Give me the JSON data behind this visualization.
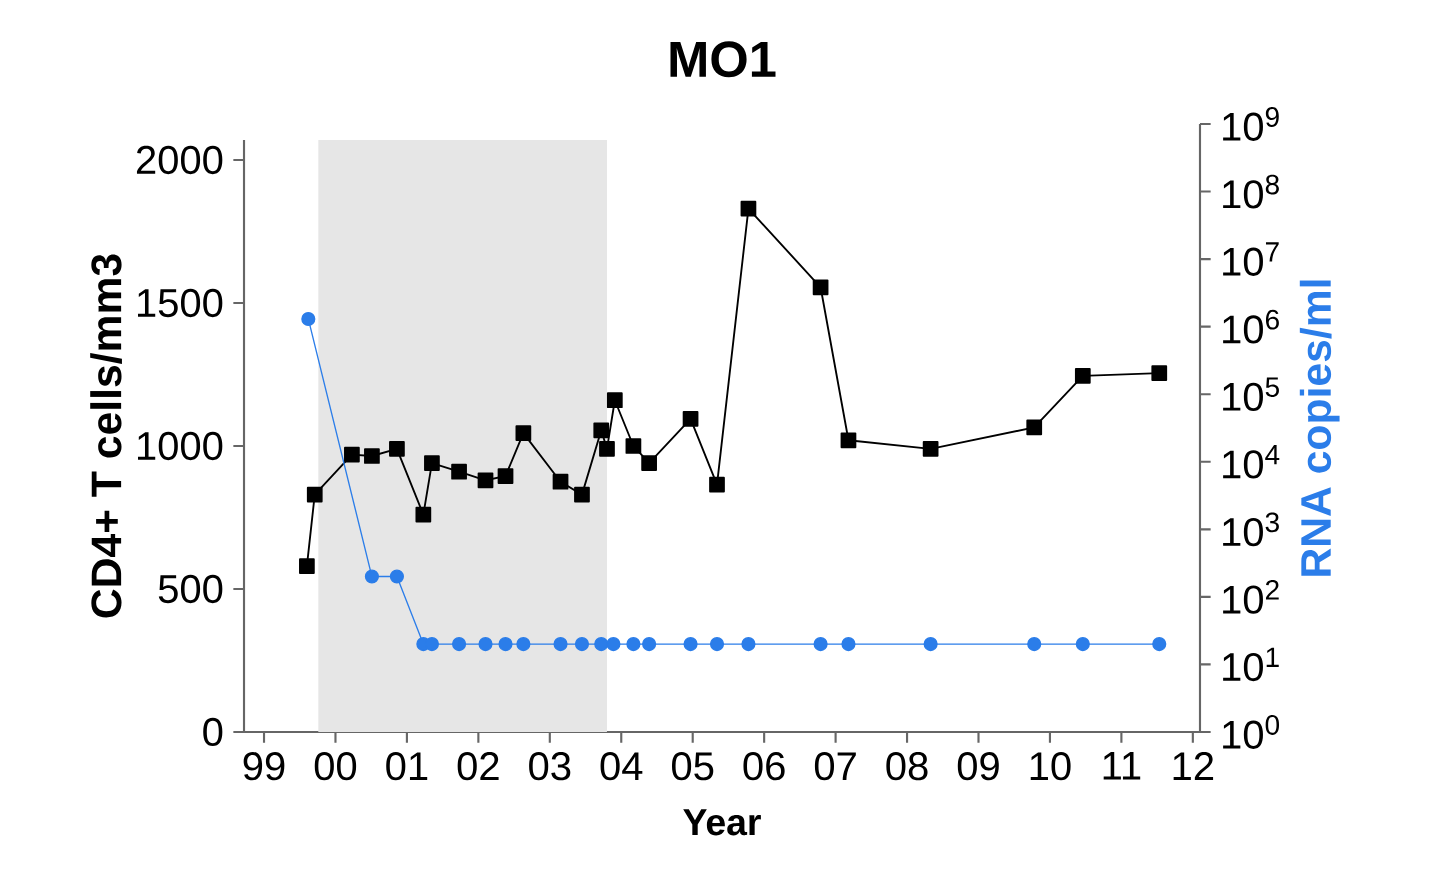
{
  "chart_data": {
    "type": "line",
    "title": "MO1",
    "xlabel": "Year",
    "ylabel": "CD4+ T cells/mm3",
    "y2label": "RNA copies/ml",
    "xlim": [
      1998.72,
      2012.1
    ],
    "xticks": [
      {
        "value": 1999,
        "label": "99"
      },
      {
        "value": 2000,
        "label": "00"
      },
      {
        "value": 2001,
        "label": "01"
      },
      {
        "value": 2002,
        "label": "02"
      },
      {
        "value": 2003,
        "label": "03"
      },
      {
        "value": 2004,
        "label": "04"
      },
      {
        "value": 2005,
        "label": "05"
      },
      {
        "value": 2006,
        "label": "06"
      },
      {
        "value": 2007,
        "label": "07"
      },
      {
        "value": 2008,
        "label": "08"
      },
      {
        "value": 2009,
        "label": "09"
      },
      {
        "value": 2010,
        "label": "10"
      },
      {
        "value": 2011,
        "label": "11"
      },
      {
        "value": 2012,
        "label": "12"
      }
    ],
    "ylim": [
      0,
      2070
    ],
    "yticks": [
      0,
      500,
      1000,
      1500,
      2000
    ],
    "y2lim": [
      1,
      1000000000
    ],
    "y2ticks": [
      {
        "value": 1,
        "label": "10$^{0}$"
      },
      {
        "value": 10,
        "label": "10$^{1}$"
      },
      {
        "value": 100,
        "label": "10$^{2}$"
      },
      {
        "value": 1000,
        "label": "10$^{3}$"
      },
      {
        "value": 10000,
        "label": "10$^{4}$"
      },
      {
        "value": 100000,
        "label": "10$^{5}$"
      },
      {
        "value": 1000000,
        "label": "10$^{6}$"
      },
      {
        "value": 10000000,
        "label": "10$^{7}$"
      },
      {
        "value": 100000000,
        "label": "10$^{8}$"
      },
      {
        "value": 1000000000,
        "label": "10$^{9}$"
      }
    ],
    "log": "y2",
    "grid": false,
    "line_style": "solid",
    "bands": [
      {
        "axis": "x",
        "from": 1999.76,
        "to": 2003.8,
        "color": "#e6e6e6"
      }
    ],
    "series": [
      {
        "color": "#000000",
        "marker": "square",
        "x": [
          1999.6,
          1999.71,
          2000.23,
          2000.51,
          2000.86,
          2001.23,
          2001.35,
          2001.73,
          2002.1,
          2002.38,
          2002.63,
          2003.15,
          2003.45,
          2003.72,
          2003.8,
          2003.91,
          2004.17,
          2004.39,
          2004.97,
          2005.34,
          2005.78,
          2006.79,
          2007.18,
          2008.33,
          2009.78,
          2010.46,
          2011.53
        ],
        "values": [
          580,
          830,
          970,
          965,
          990,
          760,
          940,
          910,
          880,
          895,
          1045,
          875,
          830,
          1055,
          990,
          1160,
          1000,
          940,
          1095,
          865,
          1830,
          1555,
          1020,
          990,
          1065,
          1245,
          1255
        ]
      },
      {
        "color": "#2b7de9",
        "marker": "circle",
        "axis": "y2",
        "x": [
          1999.62,
          2000.51,
          2000.86,
          2001.23,
          2001.35,
          2001.73,
          2002.1,
          2002.38,
          2002.63,
          2003.15,
          2003.45,
          2003.72,
          2003.89,
          2004.17,
          2004.39,
          2004.97,
          2005.34,
          2005.78,
          2006.79,
          2007.18,
          2008.33,
          2009.78,
          2010.46,
          2011.53
        ],
        "values": [
          1300000,
          200,
          200,
          20,
          20,
          20,
          20,
          20,
          20,
          20,
          20,
          20,
          20,
          20,
          20,
          20,
          20,
          20,
          20,
          20,
          20,
          20,
          20,
          20
        ]
      }
    ]
  }
}
